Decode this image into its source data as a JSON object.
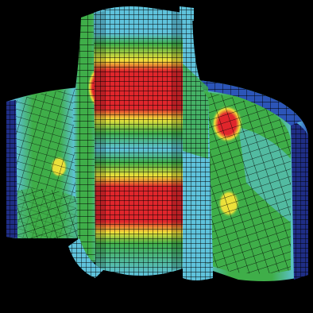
{
  "colors": {
    "background": "#000000",
    "mesh_line": "#000000",
    "contour_blue_dark": "#1f2e86",
    "contour_blue": "#2c55b8",
    "contour_cyan": "#5fc3dc",
    "contour_green": "#3fae49",
    "contour_yellow": "#f0e23a",
    "contour_red": "#e0262c"
  },
  "icons": {
    "model": "fea-stress-contour-cutaway"
  }
}
